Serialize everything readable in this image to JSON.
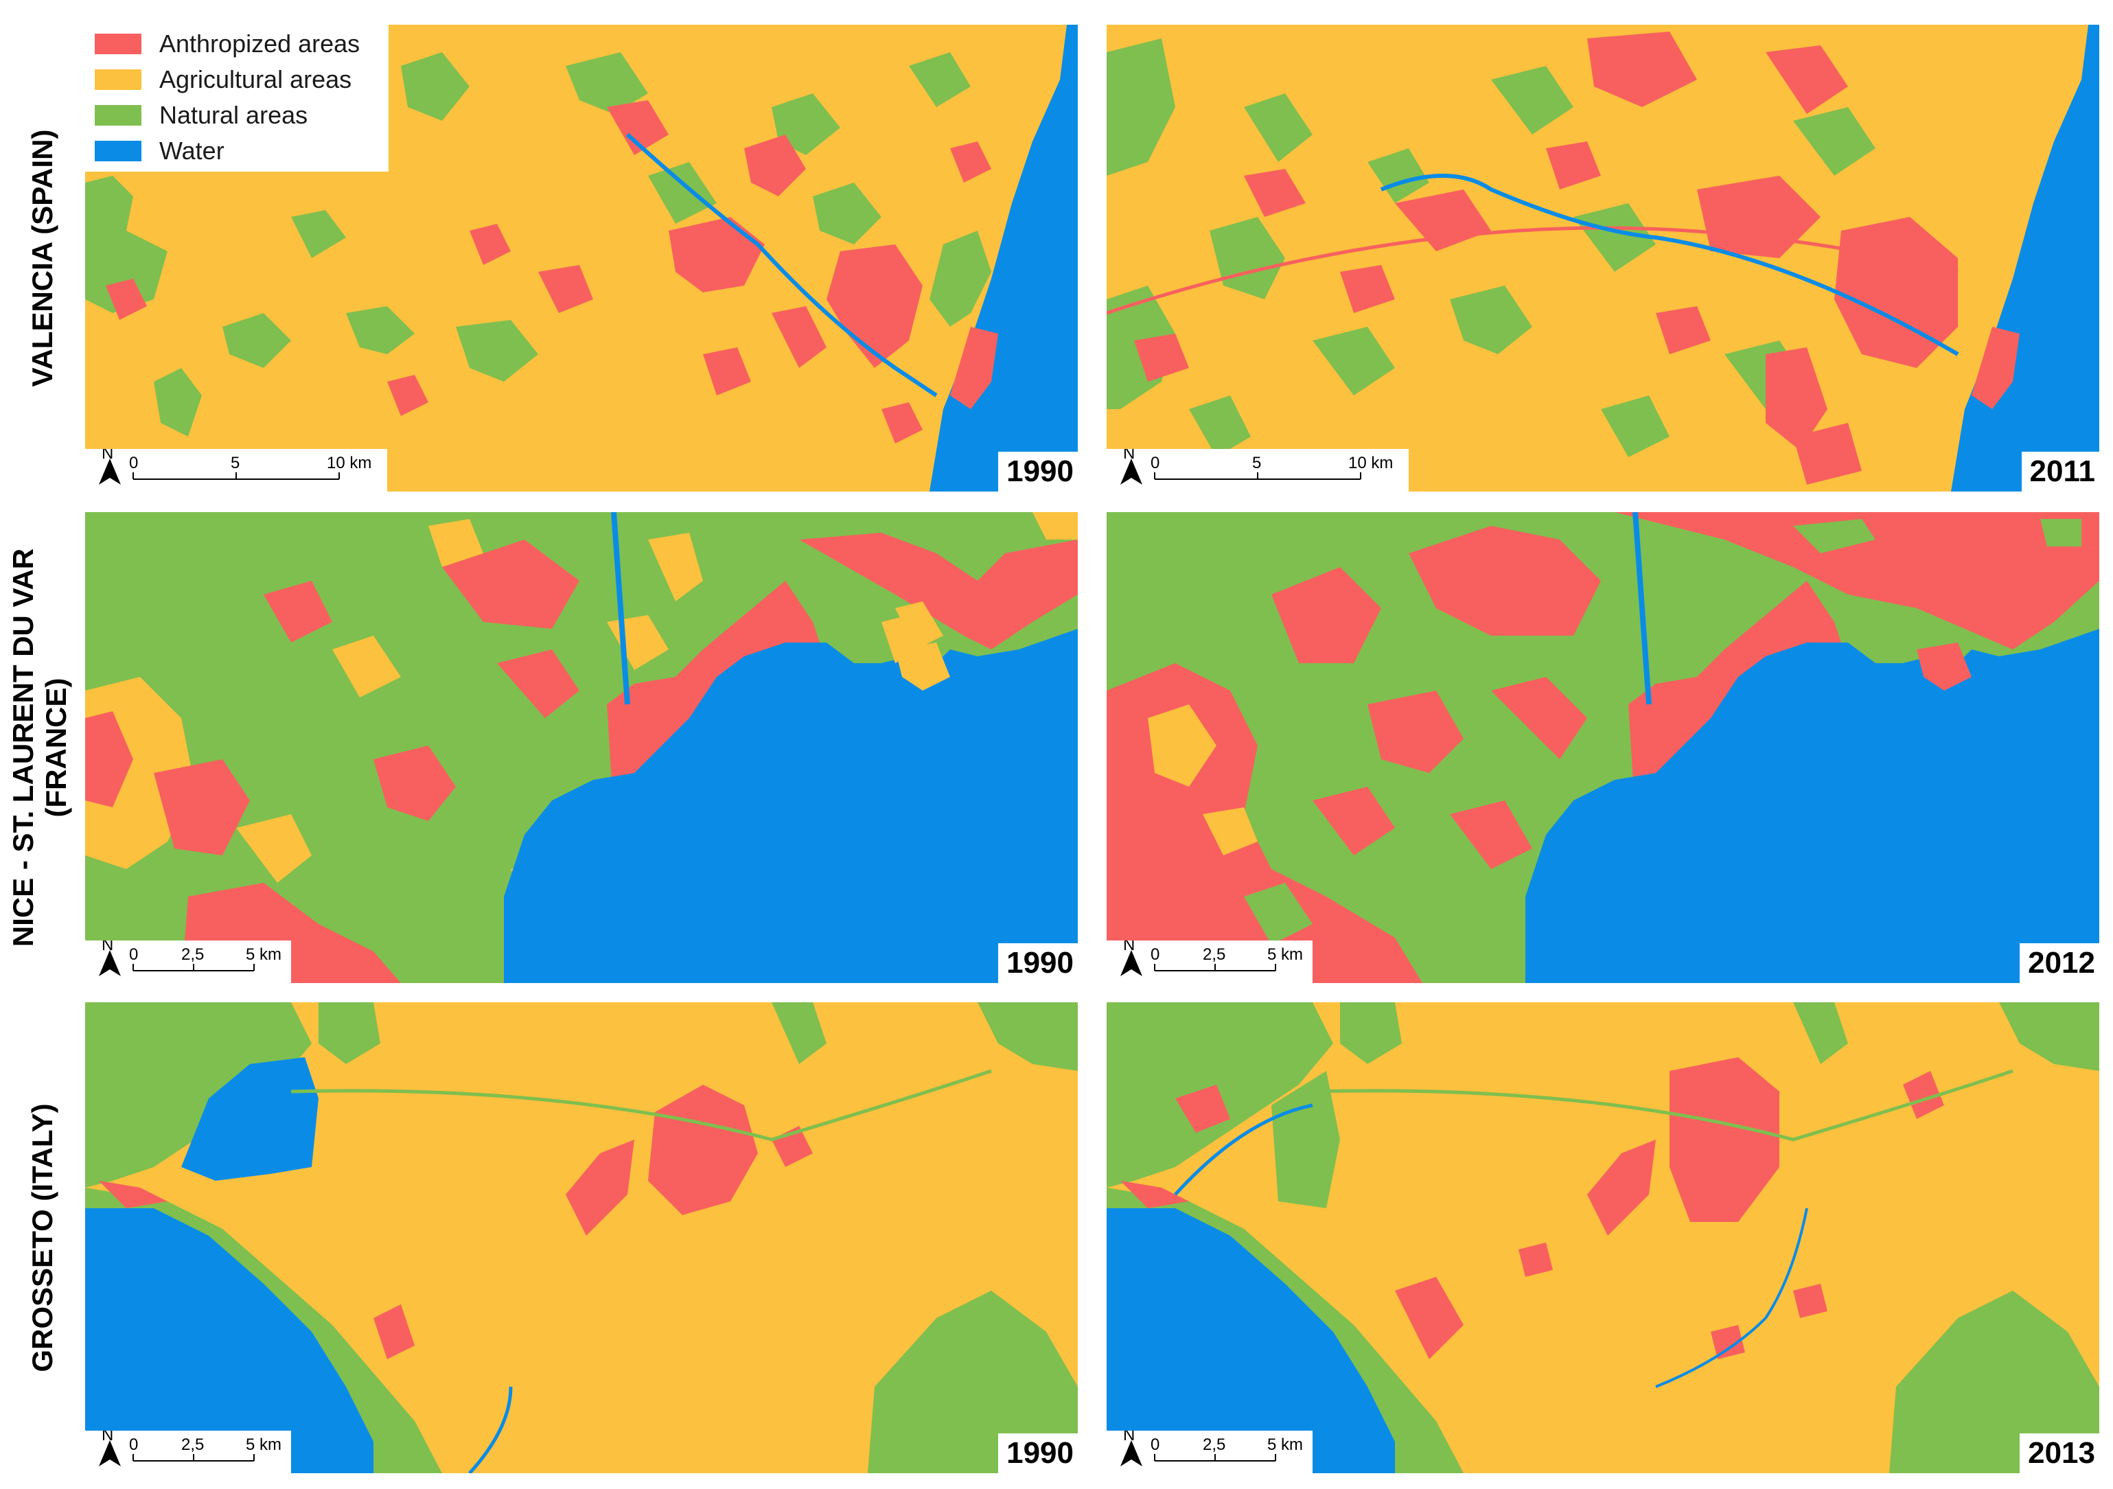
{
  "colors": {
    "anthropized": "#f7605e",
    "agricultural": "#fcc13e",
    "natural": "#7fbf4f",
    "water": "#0a8ce6"
  },
  "legend": {
    "items": [
      {
        "label": "Anthropized areas",
        "color": "#f7605e"
      },
      {
        "label": "Agricultural areas",
        "color": "#fcc13e"
      },
      {
        "label": "Natural areas",
        "color": "#7fbf4f"
      },
      {
        "label": "Water",
        "color": "#0a8ce6"
      }
    ]
  },
  "rows": [
    {
      "label_lines": [
        "VALENCIA (SPAIN)"
      ],
      "scale": {
        "labels": [
          "0",
          "5",
          "10 km"
        ]
      },
      "panels": [
        {
          "year": "1990"
        },
        {
          "year": "2011"
        }
      ]
    },
    {
      "label_lines": [
        "NICE - ST. LAURENT DU VAR",
        "(FRANCE)"
      ],
      "scale": {
        "labels": [
          "0",
          "2,5",
          "5 km"
        ]
      },
      "panels": [
        {
          "year": "1990"
        },
        {
          "year": "2012"
        }
      ]
    },
    {
      "label_lines": [
        "GROSSETO (ITALY)"
      ],
      "scale": {
        "labels": [
          "0",
          "2,5",
          "5 km"
        ]
      },
      "panels": [
        {
          "year": "1990"
        },
        {
          "year": "2013"
        }
      ]
    }
  ],
  "north_arrow": {
    "label": "N",
    "icon": "north-arrow-icon"
  }
}
